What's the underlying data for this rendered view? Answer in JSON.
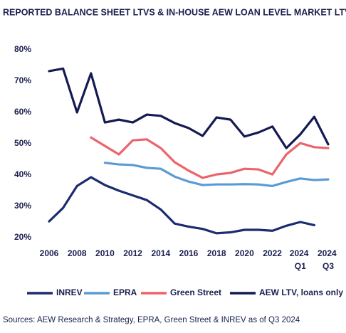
{
  "chart_data": {
    "type": "line",
    "title": "REPORTED BALANCE SHEET LTVS & IN-HOUSE AEW LOAN LEVEL MARKET LTVS",
    "x": [
      2006,
      2007,
      2008,
      2009,
      2010,
      2011,
      2012,
      2013,
      2014,
      2015,
      2016,
      2017,
      2018,
      2019,
      2020,
      2021,
      2022,
      2023,
      2024,
      2025,
      2026
    ],
    "series": [
      {
        "name": "INREV",
        "color": "#1c2c6e",
        "values": [
          25.2,
          29.5,
          36.5,
          39.3,
          36.8,
          35,
          33.5,
          32,
          29,
          24.5,
          23.5,
          22.8,
          21.4,
          21.7,
          22.5,
          22.5,
          22.2,
          23.8,
          25,
          24,
          null
        ]
      },
      {
        "name": "EPRA",
        "color": "#5b9bd5",
        "values": [
          null,
          null,
          null,
          null,
          43.9,
          43.4,
          43.2,
          42.3,
          42,
          39.5,
          37.9,
          36.8,
          37,
          37,
          37.1,
          37,
          36.5,
          37.8,
          38.9,
          38.4,
          38.6
        ]
      },
      {
        "name": "Green Street",
        "color": "#ec6469",
        "values": [
          null,
          null,
          null,
          52,
          49.3,
          46.6,
          51.1,
          51.4,
          48.6,
          44.1,
          41.4,
          39.1,
          40.2,
          40.7,
          42,
          41.8,
          40.2,
          46.6,
          50.2,
          48.9,
          48.6
        ]
      },
      {
        "name": "AEW LTV, loans only",
        "color": "#141a52",
        "values": [
          73.2,
          74,
          60,
          72.5,
          56.8,
          57.7,
          56.8,
          59.3,
          58.9,
          56.6,
          55,
          52.5,
          58.4,
          57.7,
          52.3,
          53.6,
          55.5,
          48.6,
          53,
          58.6,
          49.8
        ]
      }
    ],
    "xlim": [
      2005,
      2027
    ],
    "xticks": [
      2006,
      2008,
      2010,
      2012,
      2014,
      2016,
      2018,
      2020,
      2022,
      {
        "value": 2024,
        "label": "2024 Q1"
      },
      {
        "value": 2026,
        "label": "2024 Q3"
      }
    ],
    "ylim": [
      20,
      80
    ],
    "yticks": [
      {
        "value": 20,
        "label": "20%"
      },
      {
        "value": 30,
        "label": "30%"
      },
      {
        "value": 40,
        "label": "40%"
      },
      {
        "value": 50,
        "label": "50%"
      },
      {
        "value": 60,
        "label": "60%"
      },
      {
        "value": 70,
        "label": "70%"
      },
      {
        "value": 80,
        "label": "80%"
      }
    ],
    "grid": false,
    "legend": "bottom",
    "source": "Sources: AEW Research & Strategy, EPRA, Green Street & INREV as of Q3 2024"
  }
}
